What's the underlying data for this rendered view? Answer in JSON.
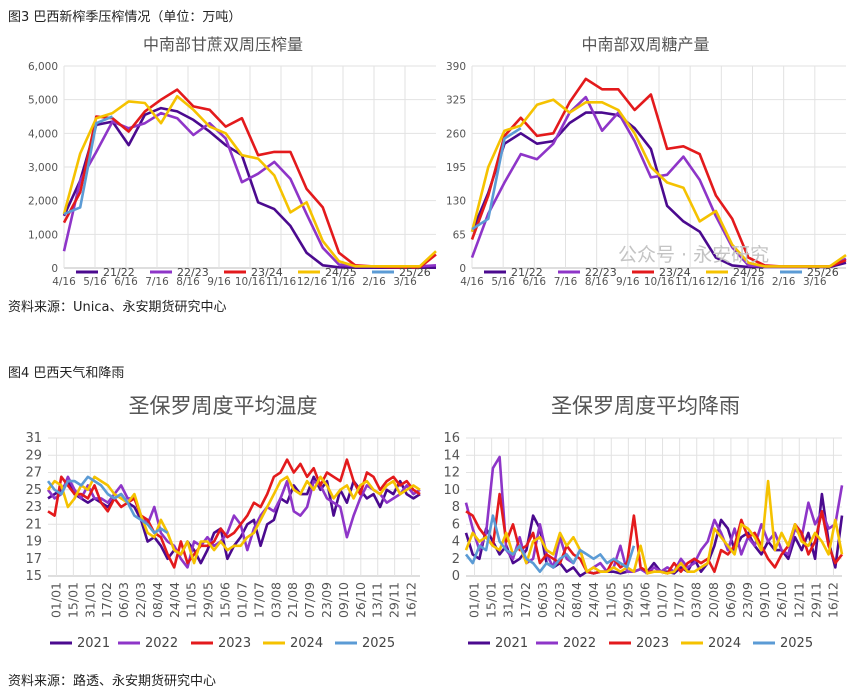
{
  "captions": {
    "fig3": "图3 巴西新榨季压榨情况（单位：万吨）",
    "fig4": "图4 巴西天气和降雨",
    "source3": "资料来源：Unica、永安期货研究中心",
    "source4": "资料来源：路透、永安期货研究中心"
  },
  "watermark": "公众号 · 永安研究",
  "series_colors": {
    "21/22": "#4b0a8f",
    "22/23": "#8e35c8",
    "23/24": "#e31a1c",
    "24/25": "#f5c200",
    "25/26": "#5b9bd5",
    "2021": "#4b0a8f",
    "2022": "#8e35c8",
    "2023": "#e31a1c",
    "2024": "#f5c200",
    "2025": "#5b9bd5"
  },
  "chart_data": [
    {
      "type": "line",
      "title": "中南部甘蔗双周压榨量",
      "x_ticks": [
        "4/16",
        "5/16",
        "6/16",
        "7/16",
        "8/16",
        "9/16",
        "10/16",
        "11/16",
        "12/16",
        "1/16",
        "2/16",
        "3/16"
      ],
      "y_ticks": [
        "0",
        "1,000",
        "2,000",
        "3,000",
        "4,000",
        "5,000",
        "6,000"
      ],
      "ylim": [
        0,
        6000
      ],
      "series": [
        {
          "name": "21/22",
          "values": [
            1550,
            2600,
            4250,
            4350,
            3650,
            4550,
            4750,
            4650,
            4400,
            4050,
            3650,
            3350,
            1950,
            1750,
            1250,
            450,
            80,
            20,
            10,
            10,
            10,
            10,
            10,
            10
          ]
        },
        {
          "name": "22/23",
          "values": [
            500,
            2600,
            3450,
            4350,
            4150,
            4300,
            4600,
            4450,
            3950,
            4300,
            3850,
            2550,
            2800,
            3150,
            2650,
            1600,
            600,
            100,
            50,
            50,
            50,
            50,
            50,
            80
          ]
        },
        {
          "name": "23/24",
          "values": [
            1350,
            2250,
            4500,
            4450,
            4050,
            4650,
            5000,
            5300,
            4800,
            4700,
            4200,
            4450,
            3350,
            3450,
            3450,
            2350,
            1800,
            450,
            80,
            50,
            30,
            20,
            20,
            400
          ]
        },
        {
          "name": "24/25",
          "values": [
            1600,
            3400,
            4450,
            4600,
            4950,
            4900,
            4300,
            5100,
            4700,
            4200,
            4000,
            3350,
            3250,
            2750,
            1650,
            1950,
            800,
            200,
            50,
            50,
            50,
            50,
            50,
            500
          ]
        },
        {
          "name": "25/26",
          "values": [
            1600,
            1800,
            4300,
            4500
          ]
        }
      ]
    },
    {
      "type": "line",
      "title": "中南部双周糖产量",
      "x_ticks": [
        "4/16",
        "5/16",
        "6/16",
        "7/16",
        "8/16",
        "9/16",
        "10/16",
        "11/16",
        "12/16",
        "1/16",
        "2/16",
        "3/16"
      ],
      "y_ticks": [
        "0",
        "65",
        "130",
        "195",
        "260",
        "325",
        "390"
      ],
      "ylim": [
        0,
        390
      ],
      "series": [
        {
          "name": "21/22",
          "values": [
            70,
            145,
            240,
            260,
            240,
            245,
            280,
            300,
            300,
            295,
            270,
            230,
            120,
            90,
            70,
            20,
            5,
            2,
            2,
            2,
            2,
            2,
            2,
            10
          ]
        },
        {
          "name": "22/23",
          "values": [
            20,
            105,
            165,
            220,
            210,
            240,
            300,
            330,
            265,
            300,
            245,
            175,
            180,
            215,
            170,
            100,
            40,
            5,
            3,
            3,
            3,
            3,
            3,
            18
          ]
        },
        {
          "name": "23/24",
          "values": [
            55,
            140,
            255,
            290,
            255,
            260,
            320,
            365,
            345,
            345,
            305,
            335,
            230,
            235,
            220,
            140,
            95,
            20,
            5,
            3,
            3,
            3,
            3,
            15
          ]
        },
        {
          "name": "24/25",
          "values": [
            70,
            195,
            265,
            275,
            315,
            325,
            300,
            320,
            320,
            305,
            260,
            195,
            165,
            155,
            90,
            110,
            45,
            10,
            3,
            3,
            3,
            3,
            3,
            25
          ]
        },
        {
          "name": "25/26",
          "values": [
            75,
            95,
            250,
            270
          ]
        }
      ]
    },
    {
      "type": "line",
      "title": "圣保罗周度平均温度",
      "x_ticks": [
        "01/01",
        "15/01",
        "31/01",
        "17/02",
        "06/03",
        "22/03",
        "08/04",
        "24/04",
        "11/05",
        "29/05",
        "15/06",
        "01/07",
        "17/07",
        "03/08",
        "21/08",
        "07/09",
        "23/09",
        "09/10",
        "26/10",
        "13/11",
        "29/11",
        "16/12"
      ],
      "y_ticks": [
        "15",
        "17",
        "19",
        "21",
        "23",
        "25",
        "27",
        "29",
        "31"
      ],
      "ylim": [
        15,
        31
      ],
      "series": [
        {
          "name": "2021",
          "values": [
            24.0,
            24.5,
            25.0,
            26.0,
            24.5,
            24.0,
            23.5,
            24.0,
            23.5,
            23.0,
            24.0,
            24.5,
            23.5,
            23.0,
            21.5,
            19.0,
            19.5,
            18.5,
            17.0,
            18.0,
            17.5,
            19.0,
            18.0,
            16.5,
            18.0,
            20.0,
            20.5,
            17.0,
            18.5,
            19.5,
            21.0,
            21.5,
            18.5,
            21.0,
            21.5,
            24.0,
            23.5,
            25.5,
            24.5,
            24.5,
            26.5,
            25.0,
            26.0,
            22.0,
            25.0,
            23.5,
            26.0,
            25.0,
            24.0,
            24.5,
            23.0,
            25.0,
            24.5,
            26.0,
            24.5,
            24.0,
            24.5
          ]
        },
        {
          "name": "2022",
          "values": [
            25.0,
            24.0,
            24.5,
            26.5,
            25.0,
            24.0,
            25.5,
            24.0,
            24.0,
            23.5,
            24.5,
            25.5,
            24.0,
            24.0,
            22.0,
            21.0,
            23.0,
            20.0,
            19.0,
            18.5,
            17.0,
            16.0,
            19.0,
            18.5,
            19.5,
            18.5,
            19.0,
            20.0,
            22.0,
            21.0,
            18.0,
            20.5,
            22.0,
            23.0,
            22.5,
            24.0,
            26.0,
            22.5,
            22.0,
            23.0,
            26.0,
            25.5,
            24.0,
            23.5,
            23.0,
            19.5,
            22.0,
            24.0,
            25.5,
            25.0,
            24.5,
            23.5,
            24.0,
            24.5,
            25.5,
            24.5,
            25.0
          ]
        },
        {
          "name": "2023",
          "values": [
            22.5,
            22.0,
            26.5,
            25.5,
            24.5,
            24.5,
            24.0,
            25.5,
            23.5,
            22.5,
            24.0,
            23.0,
            23.5,
            24.0,
            22.0,
            21.5,
            20.0,
            19.5,
            17.5,
            16.0,
            19.0,
            16.5,
            17.5,
            18.5,
            18.5,
            19.0,
            20.5,
            19.5,
            20.0,
            21.0,
            22.0,
            23.5,
            23.0,
            24.5,
            26.5,
            27.0,
            28.5,
            27.0,
            28.0,
            26.5,
            27.5,
            25.5,
            27.0,
            26.5,
            26.0,
            28.5,
            26.0,
            24.5,
            27.0,
            26.5,
            25.0,
            26.0,
            26.5,
            25.5,
            26.0,
            25.0,
            24.5
          ]
        },
        {
          "name": "2024",
          "values": [
            25.0,
            26.0,
            25.5,
            23.0,
            24.0,
            25.5,
            25.0,
            26.5,
            26.0,
            25.5,
            24.5,
            24.0,
            23.5,
            24.5,
            22.0,
            20.0,
            19.5,
            21.5,
            20.0,
            18.0,
            17.5,
            19.0,
            16.5,
            19.0,
            19.0,
            18.0,
            19.0,
            18.0,
            18.5,
            18.5,
            19.5,
            20.0,
            21.5,
            23.0,
            24.5,
            26.0,
            26.5,
            25.0,
            24.5,
            26.0,
            25.0,
            26.5,
            25.5,
            24.0,
            25.0,
            25.5,
            24.0,
            25.5,
            26.0,
            25.0,
            24.5,
            25.5,
            26.0,
            24.5,
            25.0,
            25.5,
            25.0
          ]
        },
        {
          "name": "2025",
          "values": [
            26.0,
            25.0,
            24.5,
            26.0,
            26.0,
            25.5,
            26.5,
            26.0,
            25.5,
            24.5,
            24.0,
            24.5,
            23.5,
            22.0,
            21.5,
            21.0,
            20.0,
            20.5,
            20.0
          ]
        }
      ]
    },
    {
      "type": "line",
      "title": "圣保罗周度平均降雨",
      "x_ticks": [
        "01/01",
        "15/01",
        "31/01",
        "17/02",
        "06/03",
        "22/03",
        "08/04",
        "24/04",
        "11/05",
        "29/05",
        "14/06",
        "01/07",
        "17/07",
        "03/08",
        "20/08",
        "06/09",
        "23/09",
        "09/10",
        "26/10",
        "12/11",
        "29/11",
        "16/12"
      ],
      "y_ticks": [
        "0",
        "2",
        "4",
        "6",
        "8",
        "10",
        "12",
        "14",
        "16"
      ],
      "ylim": [
        0,
        16
      ],
      "series": [
        {
          "name": "2021",
          "values": [
            5.0,
            2.5,
            2.0,
            5.5,
            4.0,
            2.5,
            3.5,
            1.5,
            2.0,
            3.0,
            7.0,
            5.5,
            1.5,
            1.0,
            1.5,
            0.5,
            1.0,
            0.0,
            0.5,
            0.3,
            0.5,
            0.5,
            0.5,
            0.3,
            0.5,
            0.5,
            0.8,
            0.5,
            1.5,
            0.5,
            0.5,
            0.3,
            1.0,
            0.5,
            2.0,
            0.5,
            1.5,
            3.5,
            6.5,
            5.5,
            3.0,
            4.5,
            5.0,
            3.5,
            2.5,
            4.0,
            3.0,
            3.0,
            2.0,
            4.5,
            3.0,
            5.0,
            2.0,
            9.5,
            4.0,
            1.0,
            7.0
          ]
        },
        {
          "name": "2022",
          "values": [
            8.5,
            5.5,
            3.0,
            5.0,
            12.5,
            13.8,
            3.0,
            2.0,
            4.5,
            1.5,
            2.0,
            6.0,
            2.5,
            1.0,
            4.5,
            2.0,
            1.5,
            3.0,
            0.5,
            1.0,
            1.5,
            0.5,
            1.0,
            3.5,
            0.5,
            0.5,
            0.8,
            0.3,
            1.0,
            0.5,
            1.0,
            0.5,
            2.0,
            1.0,
            1.5,
            3.0,
            4.0,
            6.5,
            5.0,
            3.0,
            5.5,
            2.5,
            4.5,
            3.5,
            6.0,
            4.0,
            5.0,
            3.0,
            2.5,
            5.5,
            4.5,
            8.5,
            6.0,
            7.5,
            5.5,
            6.0,
            10.5
          ]
        },
        {
          "name": "2023",
          "values": [
            7.5,
            7.0,
            5.5,
            4.5,
            3.5,
            9.5,
            4.0,
            6.0,
            3.0,
            3.5,
            5.0,
            1.5,
            2.5,
            2.0,
            1.5,
            3.5,
            2.5,
            2.0,
            0.5,
            0.3,
            0.5,
            0.5,
            2.0,
            1.0,
            1.5,
            7.0,
            1.0,
            0.5,
            0.5,
            0.5,
            0.3,
            1.5,
            0.5,
            1.5,
            2.0,
            1.5,
            2.0,
            0.5,
            3.0,
            2.5,
            3.5,
            6.5,
            4.5,
            5.0,
            3.5,
            2.0,
            1.0,
            2.5,
            3.5,
            6.0,
            5.0,
            2.5,
            4.0,
            7.5,
            3.5,
            1.5,
            2.5
          ]
        },
        {
          "name": "2024",
          "values": [
            3.0,
            5.0,
            4.0,
            4.5,
            3.5,
            3.0,
            5.0,
            2.5,
            3.5,
            1.5,
            4.0,
            4.5,
            3.0,
            2.5,
            5.0,
            3.5,
            4.5,
            3.0,
            0.5,
            1.0,
            0.5,
            0.5,
            1.0,
            0.5,
            1.0,
            0.5,
            3.5,
            0.3,
            0.5,
            0.5,
            0.3,
            0.5,
            1.5,
            0.5,
            0.5,
            1.0,
            1.5,
            5.5,
            4.5,
            3.5,
            2.5,
            6.0,
            5.5,
            4.5,
            3.0,
            11.0,
            3.0,
            5.0,
            3.5,
            6.0,
            4.0,
            3.5,
            5.0,
            4.0,
            2.5,
            6.5,
            2.5
          ]
        },
        {
          "name": "2025",
          "values": [
            2.5,
            1.5,
            3.5,
            3.0,
            7.0,
            4.0,
            3.0,
            2.5,
            3.5,
            2.0,
            1.5,
            0.5,
            1.5,
            1.0,
            2.0,
            2.5,
            1.5,
            3.0,
            2.5,
            2.0,
            2.5,
            1.5,
            2.0,
            1.5,
            1.0,
            3.5
          ]
        }
      ]
    }
  ]
}
